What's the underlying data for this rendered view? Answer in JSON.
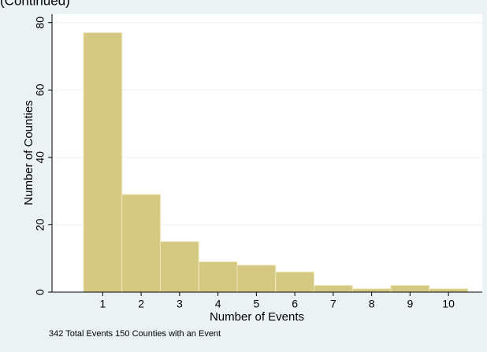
{
  "chart_data": {
    "type": "histogram",
    "title": "(Continued)",
    "xlabel": "Number of Events",
    "ylabel": "Number of Counties",
    "note": "342 Total Events 150 Counties with an Event",
    "bins": [
      0.5,
      1.5,
      2.5,
      3.5,
      4.5,
      5.5,
      6.5,
      7.5,
      8.5,
      9.5,
      10.5
    ],
    "values": [
      77,
      29,
      15,
      9,
      8,
      6,
      2,
      1,
      2,
      1
    ],
    "color": "#d5c883",
    "edgecolor": "#eee7b8",
    "xlim": [
      -0.32,
      10.88
    ],
    "ylim": [
      0,
      82.5
    ],
    "xticks": [
      1,
      2,
      3,
      4,
      5,
      6,
      7,
      8,
      9,
      10
    ],
    "yticks": [
      0,
      20,
      40,
      60,
      80
    ],
    "grid": true
  }
}
